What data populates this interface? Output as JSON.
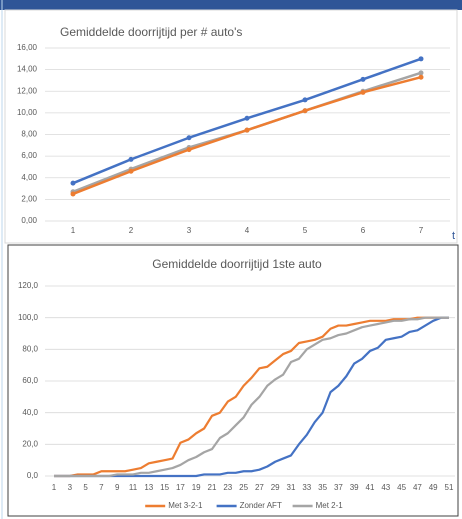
{
  "chart_data": [
    {
      "type": "line",
      "title": "Gemiddelde doorrijtijd per # auto's",
      "annotation": "t",
      "categories": [
        "1",
        "2",
        "3",
        "4",
        "5",
        "6",
        "7"
      ],
      "series": [
        {
          "color": "#4472c4",
          "values": [
            3.5,
            5.7,
            7.7,
            9.5,
            11.2,
            13.1,
            15.0
          ]
        },
        {
          "color": "#a5a5a5",
          "values": [
            2.7,
            4.8,
            6.8,
            8.4,
            10.2,
            12.0,
            13.7
          ]
        },
        {
          "color": "#ed7d31",
          "values": [
            2.5,
            4.6,
            6.6,
            8.4,
            10.2,
            11.9,
            13.3
          ]
        }
      ],
      "markers": true,
      "grid": true,
      "ylim": [
        0,
        16
      ],
      "yticks": [
        {
          "value": 0,
          "label": "0,00"
        },
        {
          "value": 2,
          "label": "2,00"
        },
        {
          "value": 4,
          "label": "4,00"
        },
        {
          "value": 6,
          "label": "6,00"
        },
        {
          "value": 8,
          "label": "8,00"
        },
        {
          "value": 10,
          "label": "10,00"
        },
        {
          "value": 12,
          "label": "12,00"
        },
        {
          "value": 14,
          "label": "14,00"
        },
        {
          "value": 16,
          "label": "16,00"
        }
      ]
    },
    {
      "type": "line",
      "title": "Gemiddelde doorrijtijd 1ste auto",
      "categories": [
        "1",
        null,
        "3",
        null,
        "5",
        null,
        "7",
        null,
        "9",
        null,
        "11",
        null,
        "13",
        null,
        "15",
        null,
        "17",
        null,
        "19",
        null,
        "21",
        null,
        "23",
        null,
        "25",
        null,
        "27",
        null,
        "29",
        null,
        "31",
        null,
        "33",
        null,
        "35",
        null,
        "37",
        null,
        "39",
        null,
        "41",
        null,
        "43",
        null,
        "45",
        null,
        "47",
        null,
        "49",
        null,
        "51"
      ],
      "series": [
        {
          "name": "Met 3-2-1",
          "color": "#ed7d31",
          "values": [
            0,
            0,
            0,
            1,
            1,
            1,
            3,
            3,
            3,
            3,
            4,
            5,
            8,
            9,
            10,
            11,
            21,
            23,
            27,
            30,
            38,
            40,
            47,
            50,
            57,
            62,
            68,
            69,
            73,
            77,
            79,
            84,
            85,
            86,
            88,
            93,
            95,
            95,
            96,
            97,
            98,
            98,
            98,
            99,
            99,
            99,
            100,
            100,
            100,
            100,
            100
          ]
        },
        {
          "name": "Zonder AFT",
          "color": "#4472c4",
          "values": [
            0,
            0,
            0,
            0,
            0,
            0,
            0,
            0,
            0,
            0,
            0,
            0,
            0,
            0,
            0,
            0,
            0,
            0,
            0,
            1,
            1,
            1,
            2,
            2,
            3,
            3,
            4,
            6,
            9,
            11,
            13,
            20,
            26,
            34,
            40,
            53,
            57,
            63,
            71,
            74,
            79,
            81,
            86,
            87,
            88,
            91,
            92,
            95,
            98,
            100,
            100
          ]
        },
        {
          "name": "Met 2-1",
          "color": "#a5a5a5",
          "values": [
            0,
            0,
            0,
            0,
            0,
            0,
            0,
            0,
            1,
            1,
            1,
            2,
            2,
            3,
            4,
            5,
            7,
            10,
            12,
            15,
            17,
            24,
            27,
            32,
            37,
            45,
            50,
            57,
            61,
            64,
            72,
            74,
            80,
            83,
            86,
            87,
            89,
            90,
            92,
            94,
            95,
            96,
            97,
            98,
            98,
            99,
            99,
            100,
            100,
            100,
            100
          ]
        }
      ],
      "markers": false,
      "grid": true,
      "legend": "bottom",
      "ylim": [
        0,
        120
      ],
      "yticks": [
        {
          "value": 0,
          "label": "0,0"
        },
        {
          "value": 20,
          "label": "20,0"
        },
        {
          "value": 40,
          "label": "40,0"
        },
        {
          "value": 60,
          "label": "60,0"
        },
        {
          "value": 80,
          "label": "80,0"
        },
        {
          "value": 100,
          "label": "100,0"
        },
        {
          "value": 120,
          "label": "120,0"
        }
      ]
    }
  ]
}
